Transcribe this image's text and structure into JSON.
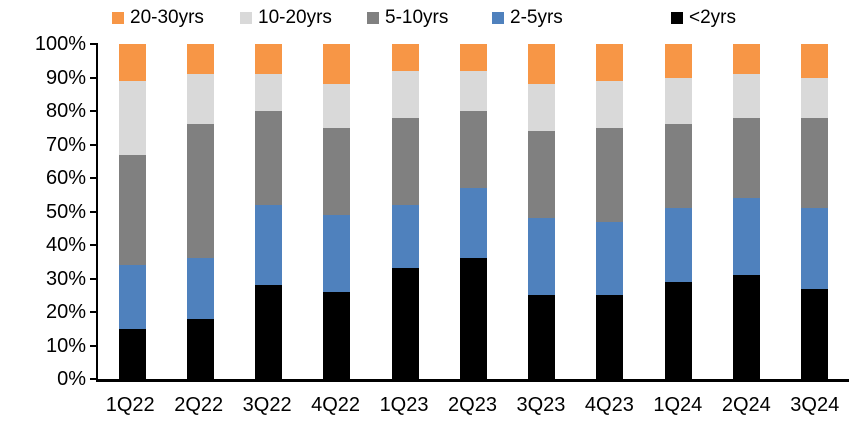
{
  "chart_data": {
    "type": "bar",
    "stacked": true,
    "percent_stacked": true,
    "title": "",
    "xlabel": "",
    "ylabel": "",
    "grid": false,
    "categories": [
      "1Q22",
      "2Q22",
      "3Q22",
      "4Q22",
      "1Q23",
      "2Q23",
      "3Q23",
      "4Q23",
      "1Q24",
      "2Q24",
      "3Q24"
    ],
    "series": [
      {
        "name": "<2yrs",
        "color": "#000000",
        "values": [
          15,
          18,
          28,
          26,
          33,
          36,
          25,
          25,
          29,
          31,
          27
        ]
      },
      {
        "name": "2-5yrs",
        "color": "#4F81BD",
        "values": [
          19,
          18,
          24,
          23,
          19,
          21,
          23,
          22,
          22,
          23,
          24
        ]
      },
      {
        "name": "5-10yrs",
        "color": "#808080",
        "values": [
          33,
          40,
          28,
          26,
          26,
          23,
          26,
          28,
          25,
          24,
          27
        ]
      },
      {
        "name": "10-20yrs",
        "color": "#D9D9D9",
        "values": [
          22,
          15,
          11,
          13,
          14,
          12,
          14,
          14,
          14,
          13,
          12
        ]
      },
      {
        "name": "20-30yrs",
        "color": "#F79646",
        "values": [
          11,
          9,
          9,
          12,
          8,
          8,
          12,
          11,
          10,
          9,
          10
        ]
      }
    ],
    "legend": {
      "position": "top",
      "order": [
        "20-30yrs",
        "10-20yrs",
        "5-10yrs",
        "2-5yrs",
        "<2yrs"
      ]
    },
    "y_axis": {
      "min": 0,
      "max": 100,
      "step": 10,
      "tick_labels": [
        "0%",
        "10%",
        "20%",
        "30%",
        "40%",
        "50%",
        "60%",
        "70%",
        "80%",
        "90%",
        "100%"
      ]
    }
  }
}
